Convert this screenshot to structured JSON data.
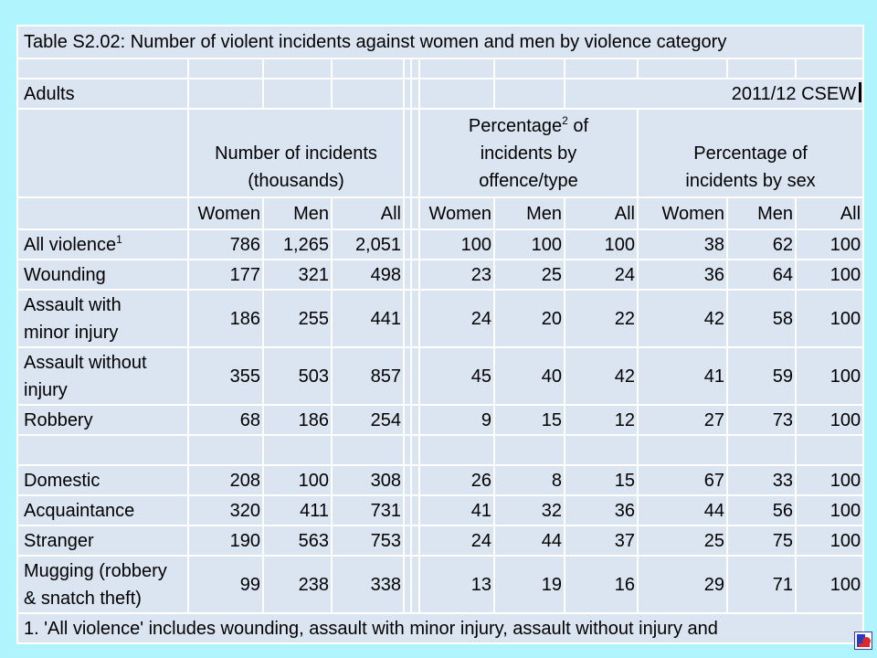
{
  "colors": {
    "slide_background": "#b0f4fe",
    "cell_background": "#dbe5f1",
    "grid_lines": "#ffffff",
    "text": "#000000"
  },
  "icons": {
    "corner_logo": "slide-logo-icon"
  },
  "table": {
    "title": "Table S2.02: Number of violent incidents against women and men by violence category",
    "population": "Adults",
    "source": "2011/12 CSEW",
    "column_groups": {
      "incidents": {
        "line1": "Number of incidents",
        "line2": "(thousands)"
      },
      "by_type": {
        "line1": "Percentage",
        "line1_sup": "2",
        "line1_tail": " of",
        "line2": "incidents by",
        "line3": "offence/type"
      },
      "by_sex": {
        "line1": "Percentage of",
        "line2": "incidents by sex"
      }
    },
    "column_headers": [
      "Women",
      "Men",
      "All"
    ],
    "sections": [
      {
        "rows": [
          {
            "label": [
              "All violence"
            ],
            "label_sup": "1",
            "incidents": [
              "786",
              "1,265",
              "2,051"
            ],
            "pct_by_type": [
              "100",
              "100",
              "100"
            ],
            "pct_by_sex": [
              "38",
              "62",
              "100"
            ]
          },
          {
            "label": [
              "Wounding"
            ],
            "incidents": [
              "177",
              "321",
              "498"
            ],
            "pct_by_type": [
              "23",
              "25",
              "24"
            ],
            "pct_by_sex": [
              "36",
              "64",
              "100"
            ]
          },
          {
            "label": [
              "Assault with",
              "minor injury"
            ],
            "incidents": [
              "186",
              "255",
              "441"
            ],
            "pct_by_type": [
              "24",
              "20",
              "22"
            ],
            "pct_by_sex": [
              "42",
              "58",
              "100"
            ]
          },
          {
            "label": [
              "Assault without",
              "injury"
            ],
            "incidents": [
              "355",
              "503",
              "857"
            ],
            "pct_by_type": [
              "45",
              "40",
              "42"
            ],
            "pct_by_sex": [
              "41",
              "59",
              "100"
            ]
          },
          {
            "label": [
              "Robbery"
            ],
            "incidents": [
              "68",
              "186",
              "254"
            ],
            "pct_by_type": [
              "9",
              "15",
              "12"
            ],
            "pct_by_sex": [
              "27",
              "73",
              "100"
            ]
          }
        ]
      },
      {
        "rows": [
          {
            "label": [
              "Domestic"
            ],
            "incidents": [
              "208",
              "100",
              "308"
            ],
            "pct_by_type": [
              "26",
              "8",
              "15"
            ],
            "pct_by_sex": [
              "67",
              "33",
              "100"
            ]
          },
          {
            "label": [
              "Acquaintance"
            ],
            "incidents": [
              "320",
              "411",
              "731"
            ],
            "pct_by_type": [
              "41",
              "32",
              "36"
            ],
            "pct_by_sex": [
              "44",
              "56",
              "100"
            ]
          },
          {
            "label": [
              "Stranger"
            ],
            "incidents": [
              "190",
              "563",
              "753"
            ],
            "pct_by_type": [
              "24",
              "44",
              "37"
            ],
            "pct_by_sex": [
              "25",
              "75",
              "100"
            ]
          },
          {
            "label": [
              "Mugging (robbery",
              "& snatch theft)"
            ],
            "incidents": [
              "99",
              "238",
              "338"
            ],
            "pct_by_type": [
              "13",
              "19",
              "16"
            ],
            "pct_by_sex": [
              "29",
              "71",
              "100"
            ]
          }
        ]
      }
    ],
    "footnote": "1. 'All violence' includes wounding, assault with minor injury, assault without injury and"
  }
}
